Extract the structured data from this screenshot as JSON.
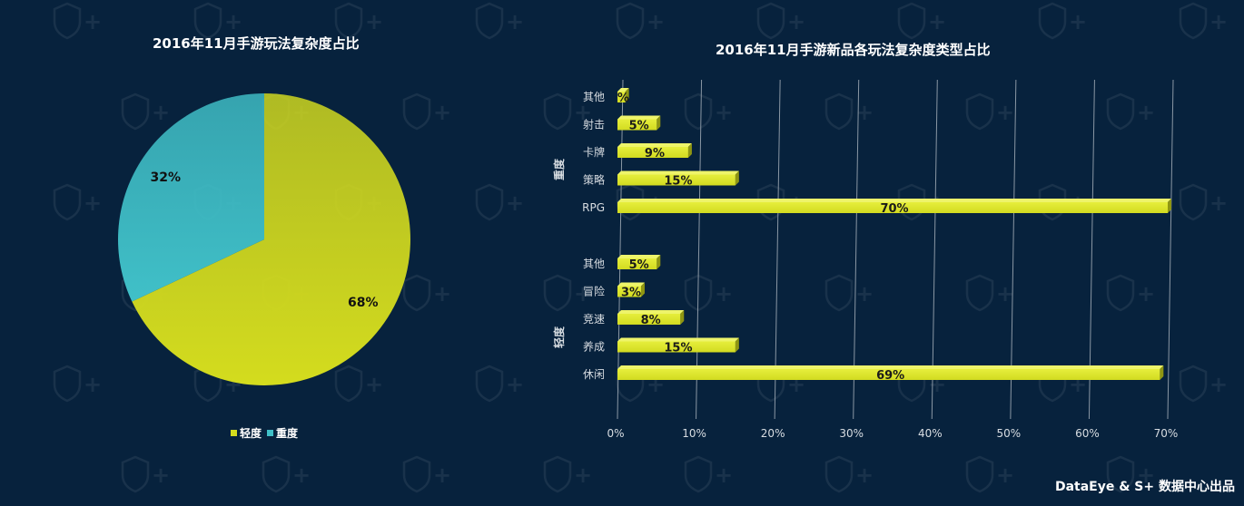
{
  "watermark": "S+",
  "credit": "DataEye & S+ 数据中心出品",
  "colors": {
    "background": "#07223d",
    "light": "#d4dc1e",
    "heavy": "#40c0c8",
    "bar_fill": "#d2db20",
    "bar_side": "#8f9612",
    "grid": "#8a97a4"
  },
  "chart_data": [
    {
      "type": "pie",
      "title": "2016年11月手游玩法复杂度占比",
      "slices": [
        {
          "label": "轻度",
          "value": 68,
          "display": "68%",
          "color": "#d4dc1e"
        },
        {
          "label": "重度",
          "value": 32,
          "display": "32%",
          "color": "#40c0c8"
        }
      ],
      "legend": [
        "轻度",
        "重度"
      ],
      "legend_position": "bottom-center"
    },
    {
      "type": "bar",
      "orientation": "horizontal",
      "title": "2016年11月手游新品各玩法复杂度类型占比",
      "groups": [
        {
          "name": "重度",
          "items": [
            {
              "label": "其他",
              "value": 1,
              "display": "%"
            },
            {
              "label": "射击",
              "value": 5,
              "display": "5%"
            },
            {
              "label": "卡牌",
              "value": 9,
              "display": "9%"
            },
            {
              "label": "策略",
              "value": 15,
              "display": "15%"
            },
            {
              "label": "RPG",
              "value": 70,
              "display": "70%"
            }
          ]
        },
        {
          "name": "轻度",
          "items": [
            {
              "label": "其他",
              "value": 5,
              "display": "5%"
            },
            {
              "label": "冒险",
              "value": 3,
              "display": "3%"
            },
            {
              "label": "竞速",
              "value": 8,
              "display": "8%"
            },
            {
              "label": "养成",
              "value": 15,
              "display": "15%"
            },
            {
              "label": "休闲",
              "value": 69,
              "display": "69%"
            }
          ]
        }
      ],
      "xticks": [
        "0%",
        "10%",
        "20%",
        "30%",
        "40%",
        "50%",
        "60%",
        "70%"
      ],
      "xlim": [
        0,
        70
      ],
      "grid": true
    }
  ]
}
